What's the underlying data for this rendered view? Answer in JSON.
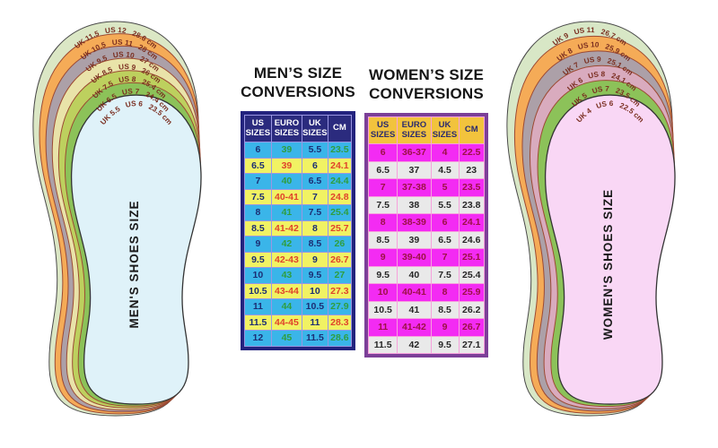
{
  "colors": {
    "men-frame": "#23237e",
    "men-gap": "#9a96e2",
    "men-header-bg": "#2b2b7e",
    "men-header-text": "#ffffff",
    "men-blue": "#3ab5e9",
    "men-yellow": "#f1f263",
    "men-navy": "#1c2e74",
    "men-green": "#2f9e3f",
    "men-red": "#e0432b",
    "wom-frame": "#7c3f98",
    "wom-gap": "#f7a0dc",
    "wom-header-bg": "#f2c33d",
    "wom-header-text": "#2b2b6e",
    "wom-magenta": "#f32bf3",
    "wom-crimson": "#9c1045",
    "wom-gray": "#e9e9e9",
    "wom-gray-text": "#262626",
    "band-label": "#7a2e20"
  },
  "mens": {
    "title": [
      "MEN’S SIZE",
      "CONVERSIONS"
    ],
    "headers": [
      "US SIZES",
      "EURO SIZES",
      "UK SIZES",
      "CM"
    ],
    "rows": [
      [
        "6",
        "39",
        "5.5",
        "23.5"
      ],
      [
        "6.5",
        "39",
        "6",
        "24.1"
      ],
      [
        "7",
        "40",
        "6.5",
        "24.4"
      ],
      [
        "7.5",
        "40-41",
        "7",
        "24.8"
      ],
      [
        "8",
        "41",
        "7.5",
        "25.4"
      ],
      [
        "8.5",
        "41-42",
        "8",
        "25.7"
      ],
      [
        "9",
        "42",
        "8.5",
        "26"
      ],
      [
        "9.5",
        "42-43",
        "9",
        "26.7"
      ],
      [
        "10",
        "43",
        "9.5",
        "27"
      ],
      [
        "10.5",
        "43-44",
        "10",
        "27.3"
      ],
      [
        "11",
        "44",
        "10.5",
        "27.9"
      ],
      [
        "11.5",
        "44-45",
        "11",
        "28.3"
      ],
      [
        "12",
        "45",
        "11.5",
        "28.6"
      ]
    ],
    "insole_text": "MEN'S SHOES SIZE",
    "insole_fill": "#dff2f9",
    "insole_band": {
      "uk": "UK 5.5",
      "us": "US 6",
      "cm": "23.5 cm"
    },
    "bands": [
      {
        "uk": "UK 11.5",
        "us": "US 12",
        "cm": "28.6 cm",
        "color": "#dbe7c5"
      },
      {
        "uk": "UK 10.5",
        "us": "US 11",
        "cm": "28 cm",
        "color": "#f5ab57"
      },
      {
        "uk": "UK 9.5",
        "us": "US 10",
        "cm": "27 cm",
        "color": "#aca0a8"
      },
      {
        "uk": "UK 8.5",
        "us": "US 9",
        "cm": "26 cm",
        "color": "#e9e3a9"
      },
      {
        "uk": "UK 7.5",
        "us": "US 8",
        "cm": "25.4 cm",
        "color": "#bdd05e"
      },
      {
        "uk": "UK 6.5",
        "us": "US 7",
        "cm": "24.4 cm",
        "color": "#8cc259"
      }
    ]
  },
  "womens": {
    "title": [
      "WOMEN’S SIZE",
      "CONVERSIONS"
    ],
    "headers": [
      "US SIZES",
      "EURO SIZES",
      "UK SIZES",
      "CM"
    ],
    "rows": [
      [
        "6",
        "36-37",
        "4",
        "22.5"
      ],
      [
        "6.5",
        "37",
        "4.5",
        "23"
      ],
      [
        "7",
        "37-38",
        "5",
        "23.5"
      ],
      [
        "7.5",
        "38",
        "5.5",
        "23.8"
      ],
      [
        "8",
        "38-39",
        "6",
        "24.1"
      ],
      [
        "8.5",
        "39",
        "6.5",
        "24.6"
      ],
      [
        "9",
        "39-40",
        "7",
        "25.1"
      ],
      [
        "9.5",
        "40",
        "7.5",
        "25.4"
      ],
      [
        "10",
        "40-41",
        "8",
        "25.9"
      ],
      [
        "10.5",
        "41",
        "8.5",
        "26.2"
      ],
      [
        "11",
        "41-42",
        "9",
        "26.7"
      ],
      [
        "11.5",
        "42",
        "9.5",
        "27.1"
      ]
    ],
    "insole_text": "WOMEN'S SHOES SIZE",
    "insole_fill": "#f9d7f5",
    "insole_band": {
      "uk": "UK 4",
      "us": "US 6",
      "cm": "22.5 cm"
    },
    "bands": [
      {
        "uk": "UK 9",
        "us": "US 11",
        "cm": "26.7 cm",
        "color": "#d8e7c6"
      },
      {
        "uk": "UK 8",
        "us": "US 10",
        "cm": "25.9 cm",
        "color": "#f5ab57"
      },
      {
        "uk": "UK 7",
        "us": "US 9",
        "cm": "25.1 cm",
        "color": "#aca0a8"
      },
      {
        "uk": "UK 6",
        "us": "US 8",
        "cm": "24.1 cm",
        "color": "#d9abbe"
      },
      {
        "uk": "UK 5",
        "us": "US 7",
        "cm": "23.5 cm",
        "color": "#8cc259"
      }
    ]
  }
}
